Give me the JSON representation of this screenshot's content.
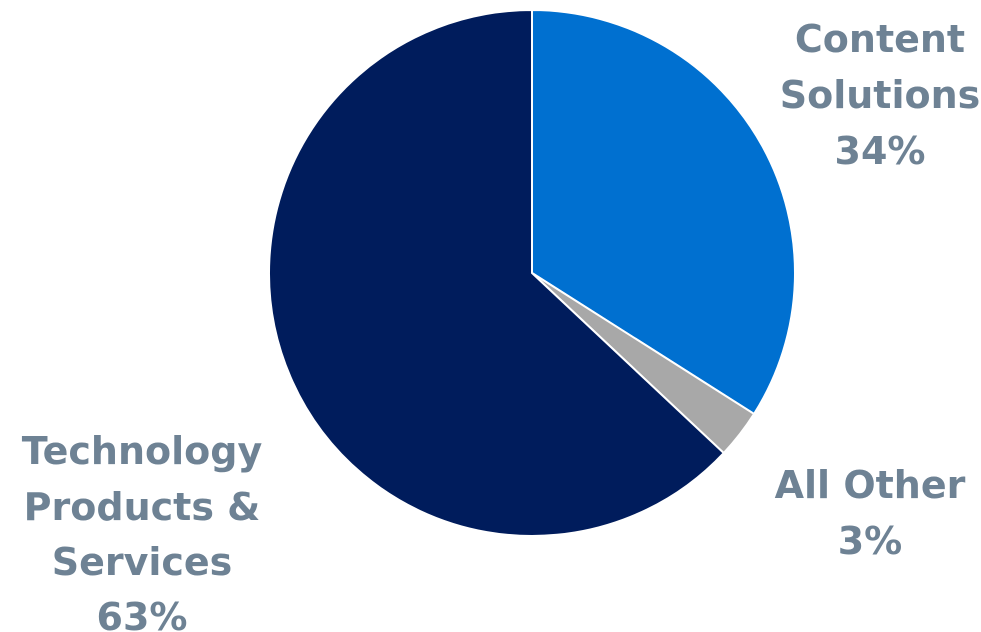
{
  "chart_data": {
    "type": "pie",
    "slices": [
      {
        "lines": [
          "Content",
          "Solutions"
        ],
        "percent_label": "34%",
        "value": 34,
        "color": "#0070d0"
      },
      {
        "lines": [
          "All Other"
        ],
        "percent_label": "3%",
        "value": 3,
        "color": "#a8a8a8"
      },
      {
        "lines": [
          "Technology",
          "Products &",
          "Services"
        ],
        "percent_label": "63%",
        "value": 63,
        "color": "#001c5c"
      }
    ],
    "start_angle": "12 o'clock",
    "direction": "clockwise",
    "legend": "none (labels placed beside slices)"
  }
}
